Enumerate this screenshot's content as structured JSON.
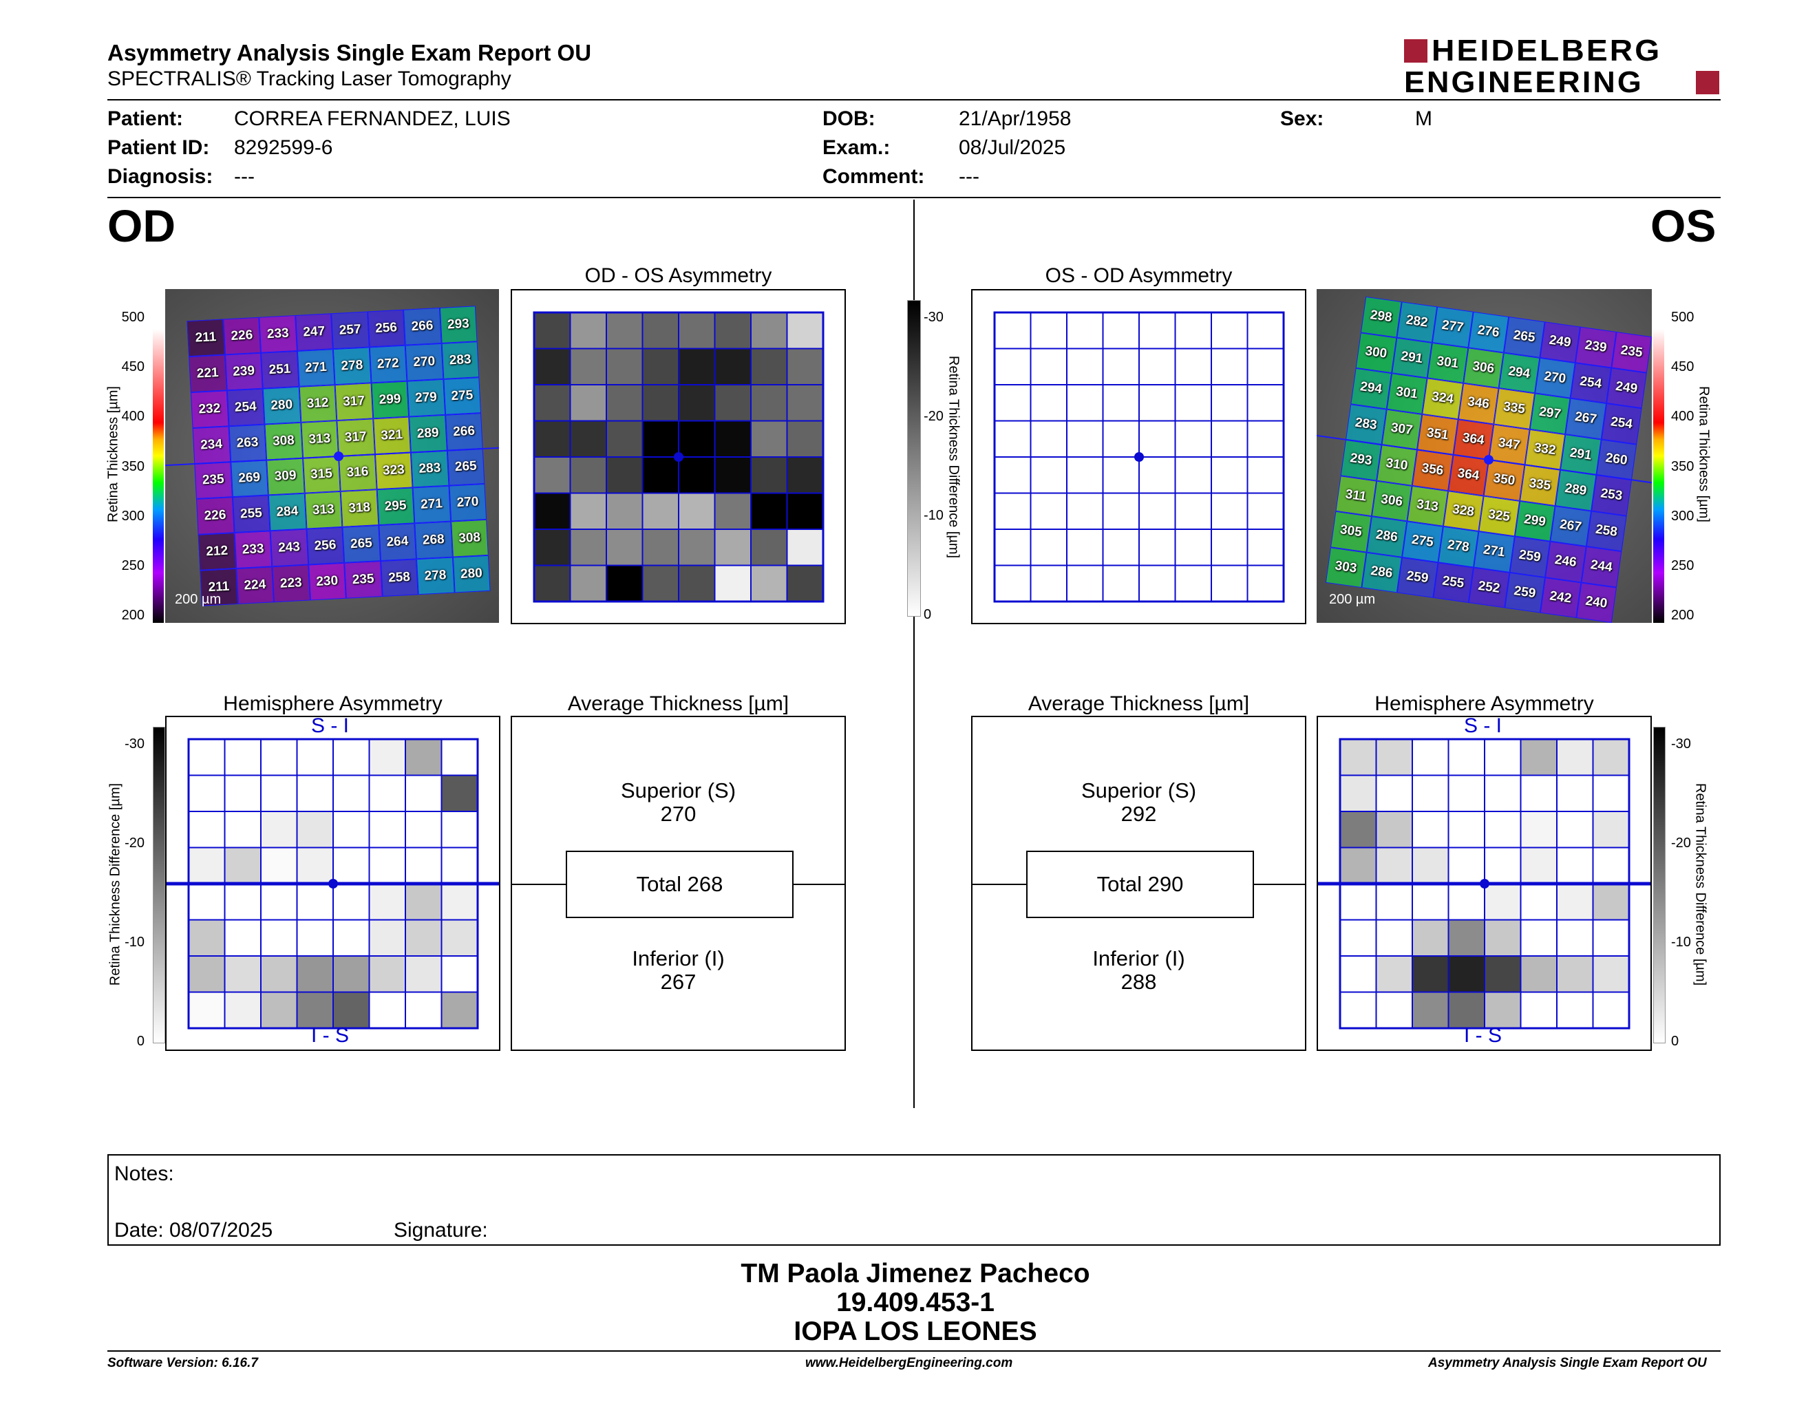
{
  "header": {
    "title": "Asymmetry Analysis Single Exam Report OU",
    "subtitle": "SPECTRALIS® Tracking Laser Tomography",
    "logo_line1": "HEIDELBERG",
    "logo_line2": "ENGINEERING"
  },
  "patient": {
    "patient_label": "Patient:",
    "patient_value": "CORREA FERNANDEZ, LUIS",
    "id_label": "Patient ID:",
    "id_value": "8292599-6",
    "diagnosis_label": "Diagnosis:",
    "diagnosis_value": "---",
    "dob_label": "DOB:",
    "dob_value": "21/Apr/1958",
    "exam_label": "Exam.:",
    "exam_value": "08/Jul/2025",
    "comment_label": "Comment:",
    "comment_value": "---",
    "sex_label": "Sex:",
    "sex_value": "M"
  },
  "eyes": {
    "od": "OD",
    "os": "OS"
  },
  "titles": {
    "od_os_asym": "OD - OS Asymmetry",
    "os_od_asym": "OS - OD Asymmetry",
    "hemi": "Hemisphere Asymmetry",
    "avg": "Average Thickness [µm]"
  },
  "scale_labels": {
    "thickness_axis": "Retina Thickness [µm]",
    "diff_axis": "Retina Thickness Difference [µm]",
    "scalebar": "200 µm",
    "s_i": "S - I",
    "i_s": "I - S"
  },
  "thickness_ticks": [
    "500",
    "450",
    "400",
    "350",
    "300",
    "250",
    "200"
  ],
  "diff_ticks": [
    "-30",
    "-20",
    "-10",
    "0"
  ],
  "od_grid": [
    [
      211,
      226,
      233,
      247,
      257,
      256,
      266,
      293
    ],
    [
      221,
      239,
      251,
      271,
      278,
      272,
      270,
      283
    ],
    [
      232,
      254,
      280,
      312,
      317,
      299,
      279,
      275
    ],
    [
      234,
      263,
      308,
      313,
      317,
      321,
      289,
      266
    ],
    [
      235,
      269,
      309,
      315,
      316,
      323,
      283,
      265
    ],
    [
      226,
      255,
      284,
      313,
      318,
      295,
      271,
      270
    ],
    [
      212,
      233,
      243,
      256,
      265,
      264,
      268,
      308
    ],
    [
      211,
      224,
      223,
      230,
      235,
      258,
      278,
      280
    ]
  ],
  "os_grid": [
    [
      298,
      282,
      277,
      276,
      265,
      249,
      239,
      235
    ],
    [
      300,
      291,
      301,
      306,
      294,
      270,
      254,
      249
    ],
    [
      294,
      301,
      324,
      346,
      335,
      297,
      267,
      254
    ],
    [
      283,
      307,
      351,
      364,
      347,
      332,
      291,
      260
    ],
    [
      293,
      310,
      356,
      364,
      350,
      335,
      289,
      253
    ],
    [
      311,
      306,
      313,
      328,
      325,
      299,
      267,
      258
    ],
    [
      305,
      286,
      275,
      278,
      271,
      259,
      246,
      244
    ],
    [
      303,
      286,
      259,
      255,
      252,
      259,
      242,
      240
    ]
  ],
  "od_os_asym_gray": [
    [
      70,
      150,
      120,
      100,
      110,
      90,
      140,
      210
    ],
    [
      40,
      120,
      110,
      70,
      30,
      30,
      80,
      110
    ],
    [
      80,
      150,
      100,
      70,
      40,
      80,
      100,
      110
    ],
    [
      50,
      50,
      80,
      0,
      0,
      10,
      120,
      100
    ],
    [
      120,
      100,
      60,
      0,
      0,
      10,
      60,
      40
    ],
    [
      10,
      170,
      150,
      170,
      180,
      120,
      0,
      0
    ],
    [
      40,
      130,
      140,
      120,
      130,
      170,
      100,
      235
    ],
    [
      60,
      150,
      0,
      90,
      80,
      240,
      180,
      70
    ]
  ],
  "od_hemi_gray": [
    [
      255,
      255,
      255,
      255,
      255,
      240,
      170,
      255
    ],
    [
      255,
      255,
      255,
      255,
      255,
      255,
      255,
      90
    ],
    [
      255,
      255,
      240,
      230,
      255,
      255,
      255,
      255
    ],
    [
      240,
      210,
      250,
      240,
      255,
      255,
      255,
      255
    ],
    [
      255,
      255,
      255,
      255,
      255,
      240,
      200,
      240
    ],
    [
      200,
      255,
      255,
      255,
      255,
      235,
      210,
      225
    ],
    [
      190,
      220,
      200,
      150,
      160,
      210,
      230,
      255
    ],
    [
      250,
      240,
      190,
      130,
      100,
      255,
      255,
      170
    ]
  ],
  "os_hemi_gray": [
    [
      215,
      215,
      255,
      255,
      255,
      180,
      235,
      215
    ],
    [
      230,
      255,
      255,
      255,
      255,
      255,
      255,
      255
    ],
    [
      125,
      200,
      255,
      255,
      255,
      245,
      255,
      230
    ],
    [
      180,
      225,
      230,
      255,
      255,
      240,
      255,
      255
    ],
    [
      255,
      255,
      255,
      255,
      240,
      255,
      240,
      200
    ],
    [
      255,
      255,
      200,
      140,
      200,
      255,
      255,
      255
    ],
    [
      255,
      215,
      55,
      35,
      70,
      185,
      205,
      225
    ],
    [
      255,
      255,
      140,
      110,
      190,
      255,
      255,
      255
    ]
  ],
  "average": {
    "superior_label": "Superior (S)",
    "inferior_label": "Inferior (I)",
    "od_superior": "270",
    "od_total": "Total 268",
    "od_inferior": "267",
    "os_superior": "292",
    "os_total": "Total 290",
    "os_inferior": "288"
  },
  "notes": {
    "notes_label": "Notes:",
    "date_label": "Date: 08/07/2025",
    "signature_label": "Signature:"
  },
  "signer": {
    "name": "TM Paola Jimenez Pacheco",
    "id": "19.409.453-1",
    "org": "IOPA LOS LEONES"
  },
  "footer": {
    "software": "Software Version: 6.16.7",
    "website": "www.HeidelbergEngineering.com",
    "report": "Asymmetry Analysis Single Exam Report OU"
  }
}
